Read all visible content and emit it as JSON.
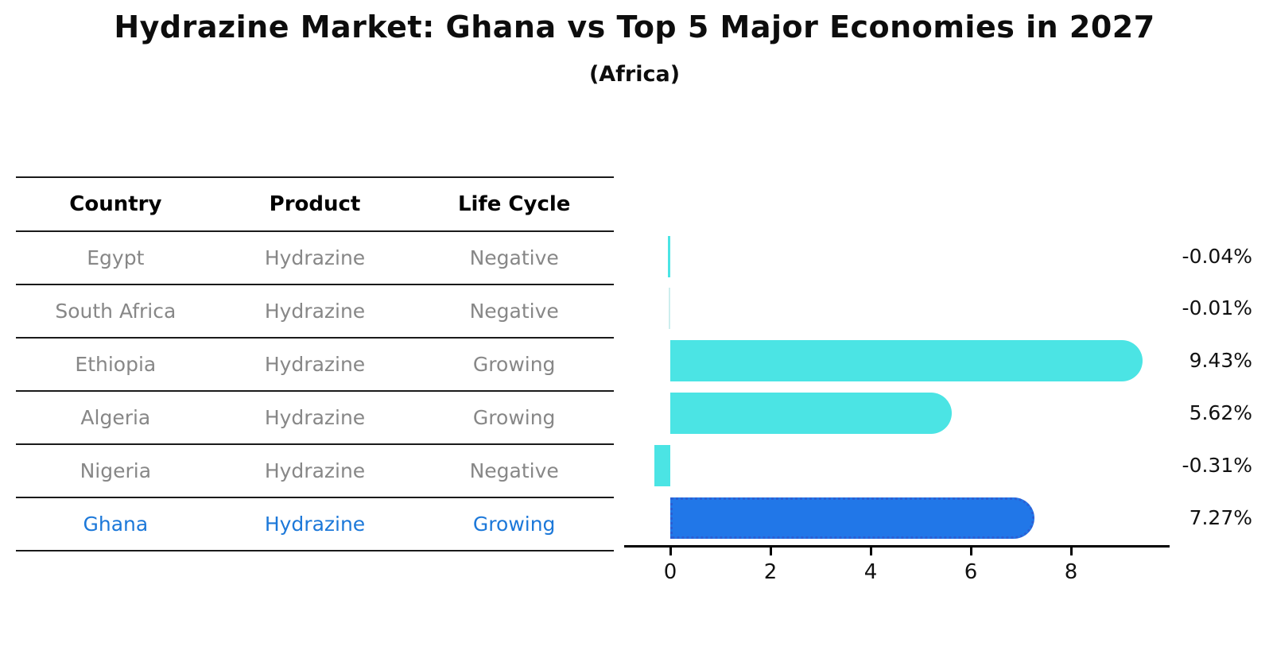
{
  "title": "Hydrazine Market: Ghana vs Top 5 Major Economies in 2027",
  "subtitle": "(Africa)",
  "table": {
    "headers": [
      "Country",
      "Product",
      "Life Cycle"
    ],
    "rows": [
      {
        "country": "Egypt",
        "product": "Hydrazine",
        "life_cycle": "Negative",
        "highlight": false
      },
      {
        "country": "South Africa",
        "product": "Hydrazine",
        "life_cycle": "Negative",
        "highlight": false
      },
      {
        "country": "Ethiopia",
        "product": "Hydrazine",
        "life_cycle": "Growing",
        "highlight": false
      },
      {
        "country": "Algeria",
        "product": "Hydrazine",
        "life_cycle": "Growing",
        "highlight": false
      },
      {
        "country": "Nigeria",
        "product": "Hydrazine",
        "life_cycle": "Negative",
        "highlight": false
      },
      {
        "country": "Ghana",
        "product": "Hydrazine",
        "life_cycle": "Growing",
        "highlight": true
      }
    ]
  },
  "chart_data": {
    "type": "bar",
    "orientation": "horizontal",
    "categories": [
      "Egypt",
      "South Africa",
      "Ethiopia",
      "Algeria",
      "Nigeria",
      "Ghana"
    ],
    "values": [
      -0.04,
      -0.01,
      9.43,
      5.62,
      -0.31,
      7.27
    ],
    "value_labels": [
      "-0.04%",
      "-0.01%",
      "9.43%",
      "5.62%",
      "-0.31%",
      "7.27%"
    ],
    "x_ticks": [
      "0",
      "2",
      "4",
      "6",
      "8"
    ],
    "x_tick_values": [
      0,
      2,
      4,
      6,
      8
    ],
    "xlim": [
      -0.95,
      10.0
    ],
    "highlight_index": 5,
    "legend": "none",
    "grid": "off",
    "colors": {
      "bar_default": "#4BE4E4",
      "bar_highlight": "#2177E8",
      "bar_highlight_edge": "#2d5fd3",
      "highlight_text": "#1c78d9",
      "body_text": "#878787",
      "axis_text": "#111111"
    }
  }
}
